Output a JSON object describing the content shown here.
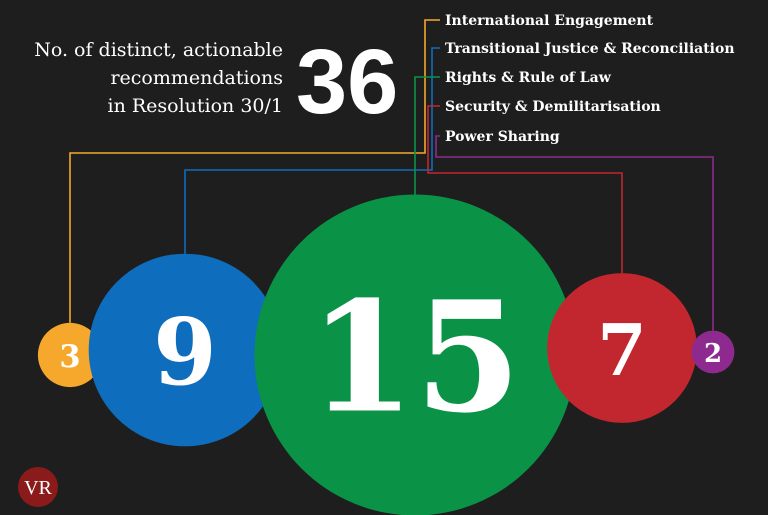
{
  "chart_data": {
    "type": "bubble",
    "title_lines": [
      "No. of distinct, actionable",
      "recommendations",
      "in Resolution 30/1"
    ],
    "total": 36,
    "categories": [
      "International Engagement",
      "Transitional Justice & Reconciliation",
      "Rights & Rule of Law",
      "Security & Demilitarisation",
      "Power Sharing"
    ],
    "values": [
      3,
      9,
      15,
      7,
      2
    ],
    "colors": [
      "#f5a82c",
      "#0f6dbd",
      "#0a9346",
      "#c2272f",
      "#8e2a8f"
    ],
    "logo": "VR"
  }
}
